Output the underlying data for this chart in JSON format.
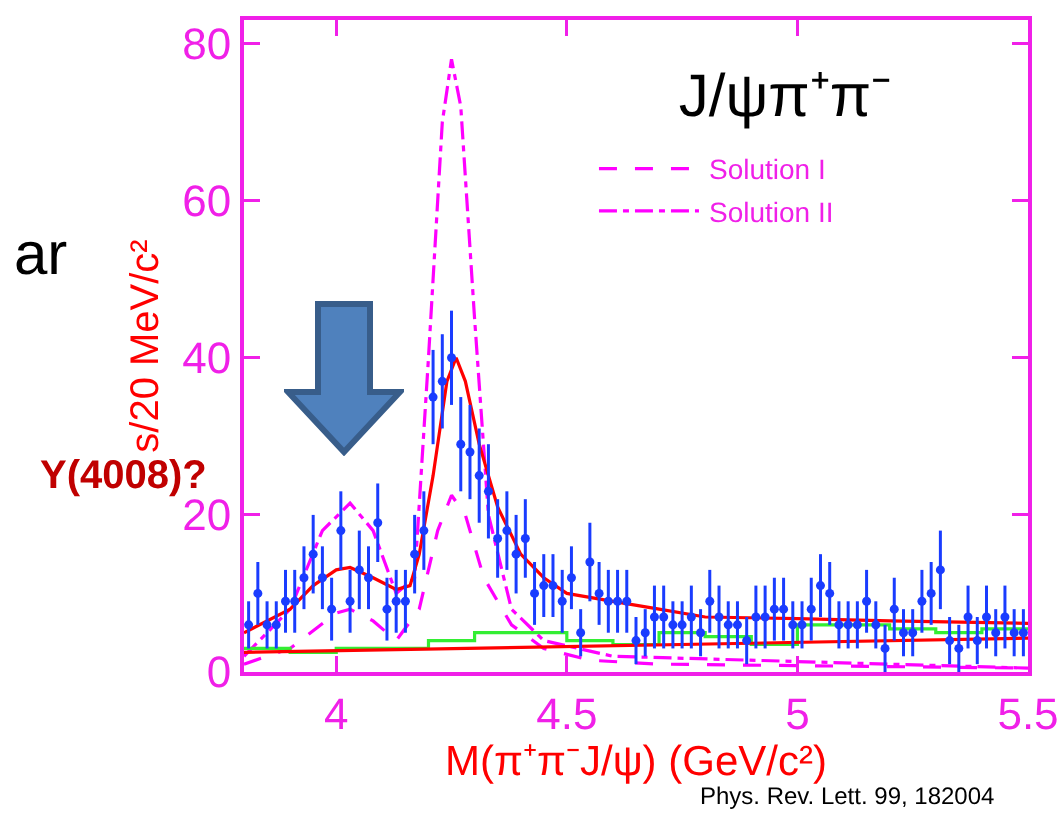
{
  "chart_data": {
    "type": "scatter",
    "title": "J/ψπ⁺π⁻",
    "xlabel": "M(π⁺π⁻J/ψ) (GeV/c²)",
    "ylabel": "s/20 MeV/c²",
    "annotations": [
      "ar",
      "Y(4008)?",
      "Phys. Rev. Lett. 99, 182004"
    ],
    "xlim": [
      3.8,
      5.5
    ],
    "xticks": [
      4,
      4.5,
      5,
      5.5
    ],
    "ylim": [
      0,
      83
    ],
    "yticks": [
      0,
      20,
      40,
      60,
      80
    ],
    "grid": false,
    "legend": "top right",
    "series": [
      {
        "type": "line",
        "name": "Solution I",
        "color": "#ff00ff",
        "line_style": "dashed",
        "marker": "none",
        "x": [
          3.8,
          3.9,
          4.0,
          4.03,
          4.08,
          4.13,
          4.18,
          4.22,
          4.25,
          4.28,
          4.32,
          4.38,
          4.45,
          4.55,
          4.7,
          5.5
        ],
        "values": [
          1,
          3,
          7.5,
          8,
          6.5,
          4,
          8,
          18,
          22.5,
          20,
          12,
          6,
          3,
          1.5,
          1,
          0.5
        ]
      },
      {
        "type": "line",
        "name": "Solution II",
        "color": "#ff00ff",
        "line_style": "dotted",
        "marker": "none",
        "x": [
          3.8,
          3.9,
          3.97,
          4.03,
          4.08,
          4.13,
          4.17,
          4.2,
          4.23,
          4.25,
          4.27,
          4.3,
          4.33,
          4.38,
          4.45,
          4.6,
          5.5
        ],
        "values": [
          2,
          8,
          18,
          21.5,
          18,
          10,
          12,
          40,
          70,
          78,
          72,
          45,
          20,
          8,
          4,
          2,
          0.5
        ]
      },
      {
        "type": "step",
        "color": "#33ee33",
        "line_style": "solid",
        "marker": "none",
        "x": [
          3.8,
          3.9,
          4.0,
          4.1,
          4.2,
          4.3,
          4.4,
          4.5,
          4.6,
          4.7,
          4.8,
          4.9,
          5.0,
          5.1,
          5.2,
          5.3,
          5.4,
          5.5
        ],
        "values": [
          3,
          2.5,
          3,
          3,
          4,
          5,
          5,
          4,
          3.5,
          5,
          4.5,
          3.5,
          6,
          6,
          5.5,
          5,
          5.5,
          5.5
        ]
      },
      {
        "type": "line",
        "color": "#ff0000",
        "line_style": "solid",
        "marker": "none",
        "x": [
          3.8,
          5.5
        ],
        "values": [
          2.5,
          4.3
        ]
      },
      {
        "type": "line",
        "color": "#ff0000",
        "line_style": "solid",
        "marker": "none",
        "x": [
          3.8,
          3.9,
          3.95,
          4.0,
          4.03,
          4.08,
          4.13,
          4.16,
          4.18,
          4.21,
          4.24,
          4.26,
          4.28,
          4.31,
          4.35,
          4.4,
          4.45,
          4.5,
          4.6,
          4.7,
          4.8,
          5.0,
          5.2,
          5.5
        ],
        "values": [
          5,
          8,
          11,
          13,
          13.3,
          12,
          10.5,
          11,
          15,
          25,
          37,
          40,
          37,
          29,
          21,
          15,
          12,
          10,
          9,
          8,
          7,
          6.8,
          6.5,
          6.2
        ]
      },
      {
        "color": "#1a3cff",
        "marker": "circle",
        "x": [
          3.81,
          3.83,
          3.85,
          3.87,
          3.89,
          3.91,
          3.93,
          3.95,
          3.97,
          3.99,
          4.01,
          4.03,
          4.05,
          4.07,
          4.09,
          4.11,
          4.13,
          4.15,
          4.17,
          4.19,
          4.21,
          4.23,
          4.25,
          4.27,
          4.29,
          4.31,
          4.33,
          4.35,
          4.37,
          4.39,
          4.41,
          4.43,
          4.45,
          4.47,
          4.49,
          4.51,
          4.53,
          4.55,
          4.57,
          4.59,
          4.61,
          4.63,
          4.65,
          4.67,
          4.69,
          4.71,
          4.73,
          4.75,
          4.77,
          4.79,
          4.81,
          4.83,
          4.85,
          4.87,
          4.89,
          4.91,
          4.93,
          4.95,
          4.97,
          4.99,
          5.01,
          5.03,
          5.05,
          5.07,
          5.09,
          5.11,
          5.13,
          5.15,
          5.17,
          5.19,
          5.21,
          5.23,
          5.25,
          5.27,
          5.29,
          5.31,
          5.33,
          5.35,
          5.37,
          5.39,
          5.41,
          5.43,
          5.45,
          5.47,
          5.49
        ],
        "values": [
          6,
          10,
          6,
          6,
          9,
          9,
          12,
          15,
          12,
          8,
          18,
          9,
          13,
          12,
          19,
          8,
          9,
          9,
          15,
          18,
          35,
          37,
          40,
          29,
          28,
          25,
          23,
          17,
          18,
          15,
          17,
          10,
          11,
          11,
          9,
          12,
          5,
          14,
          10,
          9,
          9,
          9,
          4,
          5,
          7,
          7,
          6,
          6,
          7,
          5,
          9,
          7,
          6,
          6,
          4,
          7,
          7,
          8,
          8,
          6,
          6,
          8,
          11,
          10,
          6,
          6,
          6,
          9,
          6,
          3,
          8,
          5,
          5,
          9,
          10,
          13,
          4,
          3,
          7,
          4,
          7,
          5,
          7,
          5,
          5
        ],
        "errors": [
          3,
          4,
          3,
          3,
          4,
          4,
          4,
          5,
          4,
          4,
          5,
          4,
          5,
          4,
          5,
          4,
          4,
          4,
          5,
          5,
          6,
          6,
          6,
          6,
          6,
          6,
          6,
          5,
          5,
          5,
          5,
          4,
          4,
          4,
          4,
          4,
          3,
          5,
          4,
          4,
          4,
          4,
          3,
          3,
          4,
          4,
          3,
          3,
          4,
          3,
          4,
          4,
          3,
          3,
          3,
          4,
          4,
          4,
          4,
          3,
          3,
          4,
          4,
          4,
          3,
          3,
          3,
          4,
          3,
          3,
          4,
          3,
          3,
          4,
          4,
          5,
          3,
          3,
          4,
          3,
          4,
          3,
          4,
          3,
          3
        ]
      }
    ]
  }
}
